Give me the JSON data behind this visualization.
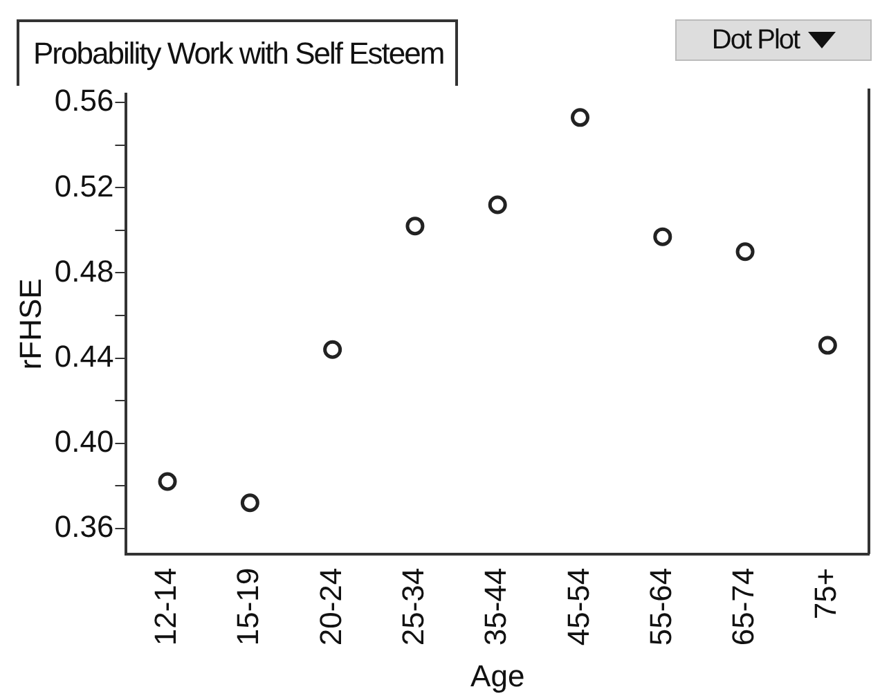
{
  "chart_data": {
    "type": "scatter",
    "title": "Probability Work with Self Esteem",
    "xlabel": "Age",
    "ylabel": "rFHSE",
    "annotations": [
      "Dot Plot"
    ],
    "categories": [
      "12-14",
      "15-19",
      "20-24",
      "25-34",
      "35-44",
      "45-54",
      "55-64",
      "65-74",
      "75+"
    ],
    "values": [
      0.382,
      0.372,
      0.444,
      0.502,
      0.512,
      0.553,
      0.497,
      0.49,
      0.446
    ],
    "color": "#222222",
    "marker": "circle",
    "grid": false,
    "legend": false,
    "ylim": [
      0.348,
      0.564
    ],
    "yticks": [
      0.36,
      {
        "value": 0.38,
        "label": null
      },
      {
        "value": 0.4,
        "label": "0.40"
      },
      {
        "value": 0.42,
        "label": null
      },
      0.44,
      {
        "value": 0.46,
        "label": null
      },
      0.48,
      {
        "value": 0.5,
        "label": null
      },
      0.52,
      {
        "value": 0.54,
        "label": null
      },
      0.56
    ]
  }
}
